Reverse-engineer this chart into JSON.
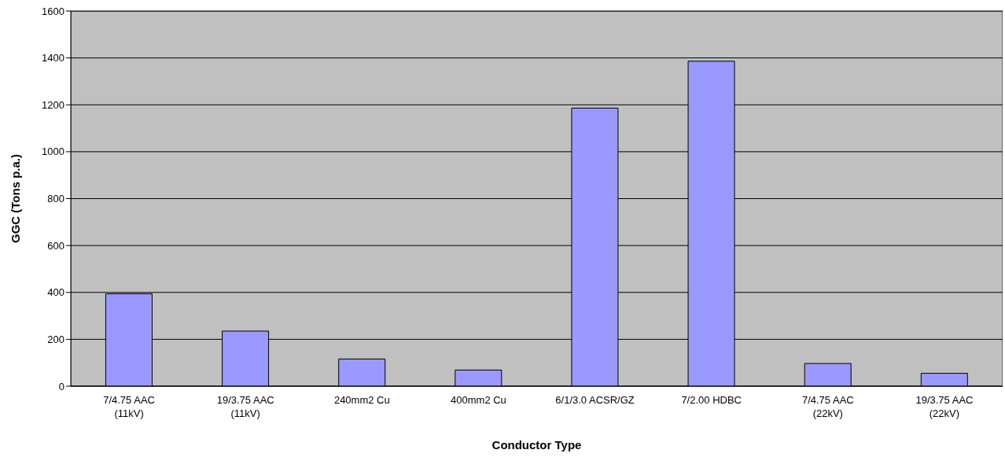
{
  "chart_data": {
    "type": "bar",
    "xlabel": "Conductor Type",
    "ylabel": "GGC (Tons p.a.)",
    "categories": [
      "7/4.75 AAC\n(11kV)",
      "19/3.75 AAC\n(11kV)",
      "240mm2 Cu",
      "400mm2 Cu",
      "6/1/3.0 ACSR/GZ",
      "7/2.00 HDBC",
      "7/4.75 AAC\n(22kV)",
      "19/3.75 AAC\n(22kV)"
    ],
    "values": [
      394,
      235,
      116,
      69,
      1186,
      1386,
      97,
      55
    ],
    "color": "#9999ff",
    "ylim": [
      0,
      1600
    ],
    "yticks": [
      0,
      200,
      400,
      600,
      800,
      1000,
      1200,
      1400,
      1600
    ],
    "grid": "y"
  }
}
